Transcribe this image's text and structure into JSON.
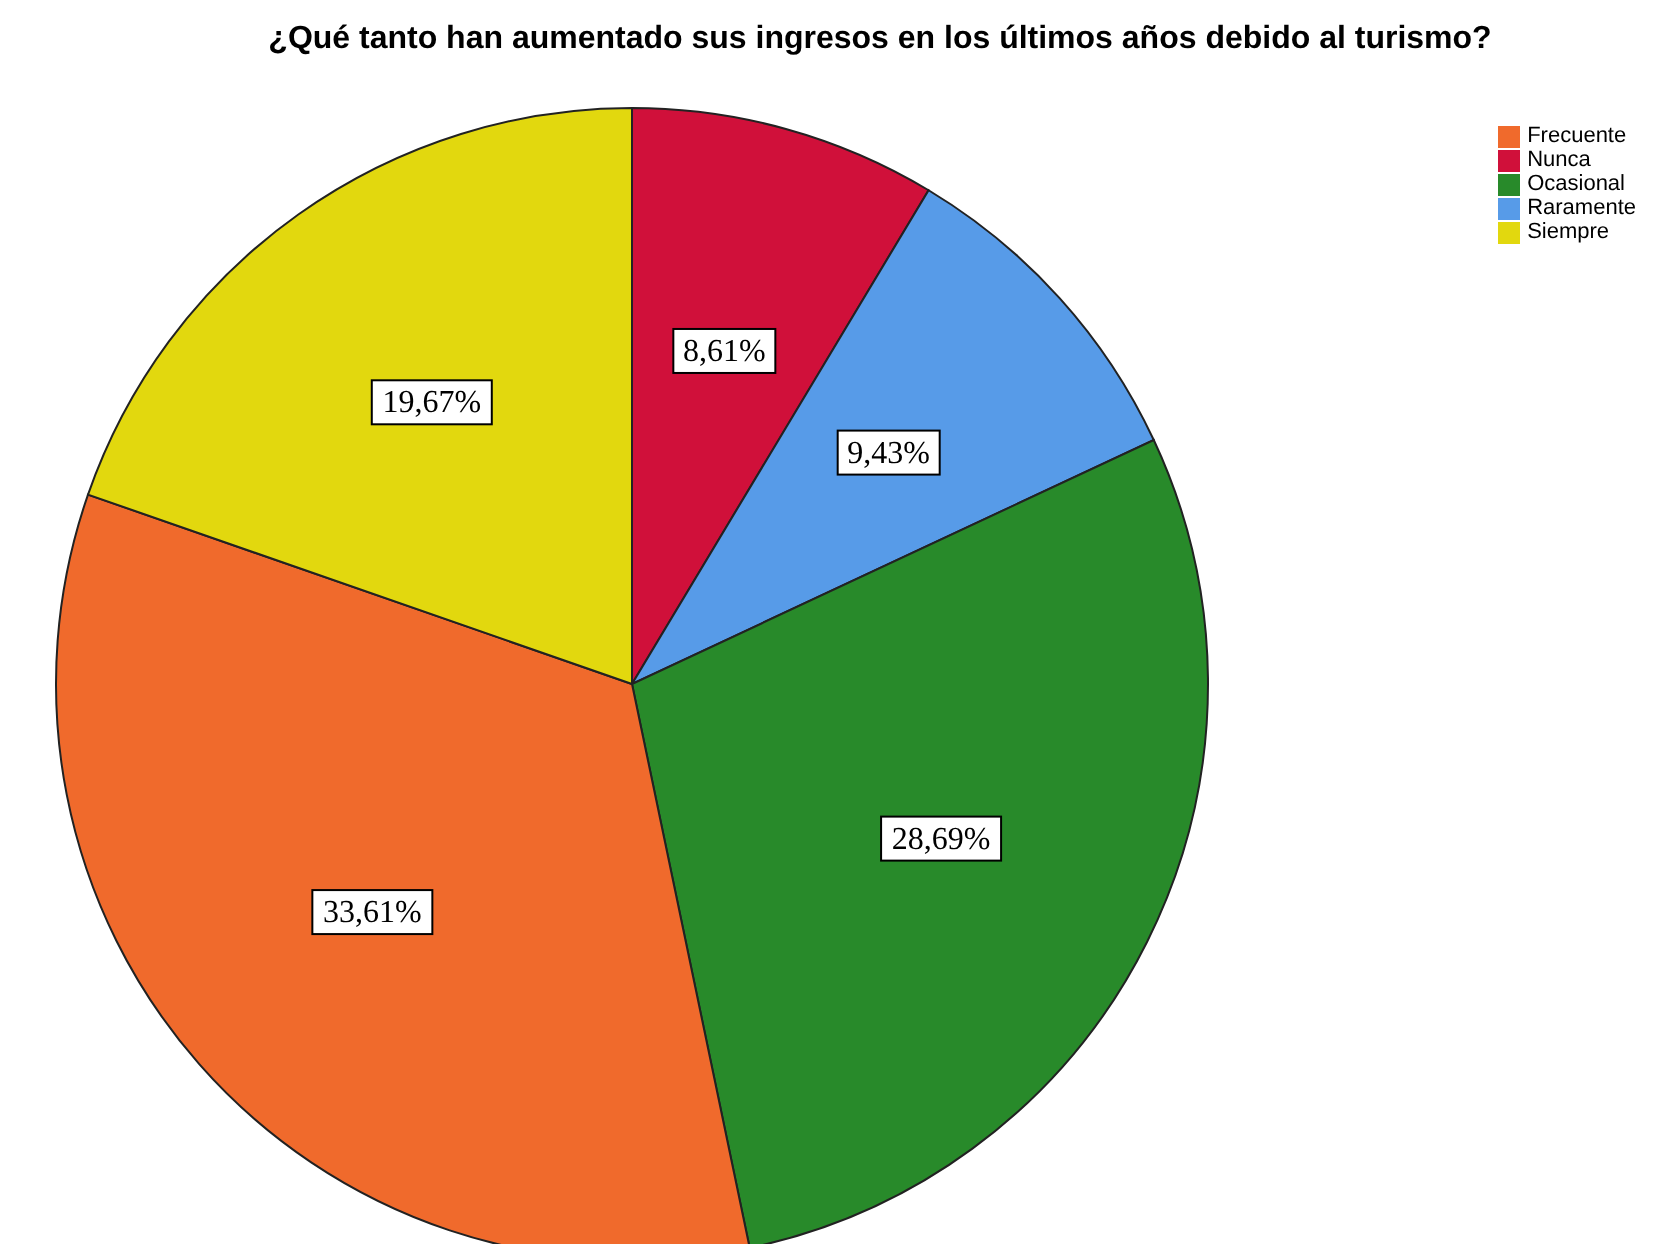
{
  "chart_data": {
    "type": "pie",
    "title": "¿Qué tanto han aumentado sus ingresos en los últimos años debido al turismo?",
    "categories": [
      "Nunca",
      "Raramente",
      "Ocasional",
      "Frecuente",
      "Siempre"
    ],
    "values": [
      8.61,
      9.43,
      28.69,
      33.61,
      19.67
    ],
    "colors": [
      "#d0103a",
      "#579be8",
      "#288a2a",
      "#f06a2c",
      "#e2d80e"
    ],
    "value_labels": [
      "8,61%",
      "9,43%",
      "28,69%",
      "33,61%",
      "19,67%"
    ],
    "legend": "top right"
  }
}
